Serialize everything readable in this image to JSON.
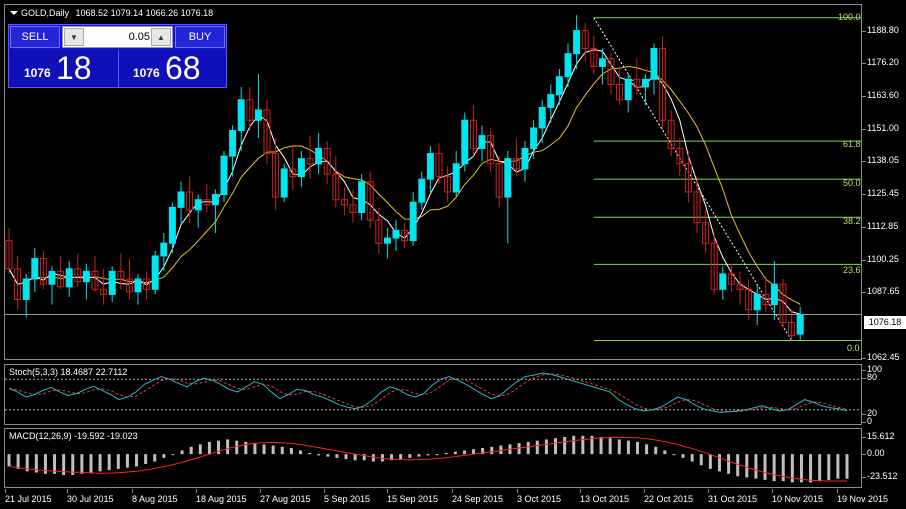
{
  "window": {
    "symbol_title": "GOLD,Daily",
    "ohlc_text": "1068.52 1079.14 1066.26 1076.18"
  },
  "trade_panel": {
    "sell_label": "SELL",
    "buy_label": "BUY",
    "lot_value": "0.05",
    "sell_price_prefix": "1076",
    "sell_price_big": "18",
    "buy_price_prefix": "1076",
    "buy_price_big": "68",
    "spin_down_glyph": "▼",
    "spin_up_glyph": "▲"
  },
  "price_scale": {
    "ticks": [
      "1188.80",
      "1176.20",
      "1163.60",
      "1151.00",
      "1138.05",
      "1125.45",
      "1112.85",
      "1100.25",
      "1087.65",
      "1062.45"
    ],
    "current_price": "1076.18"
  },
  "fibonacci": {
    "levels": [
      "100.0",
      "61.8",
      "50.0",
      "38.2",
      "23.6",
      "0.0"
    ]
  },
  "stochastic": {
    "title": "Stoch(5,3,3) 18.4687 22.7112",
    "ticks": [
      "100",
      "80",
      "20",
      "0"
    ]
  },
  "macd": {
    "title": "MACD(12,26,9) -19.592 -19.023",
    "ticks": [
      "15.612",
      "0.00",
      "-23.512"
    ]
  },
  "time_axis": {
    "labels": [
      "21 Jul 2015",
      "30 Jul 2015",
      "8 Aug 2015",
      "18 Aug 2015",
      "27 Aug 2015",
      "5 Sep 2015",
      "15 Sep 2015",
      "24 Sep 2015",
      "3 Oct 2015",
      "13 Oct 2015",
      "22 Oct 2015",
      "31 Oct 2015",
      "10 Nov 2015",
      "19 Nov 2015"
    ]
  },
  "colors": {
    "background": "#000000",
    "bull_candle": "#00e5ee",
    "bear_candle": "#cc1f1f",
    "fast_ma": "#ffffff",
    "slow_ma": "#e6c619",
    "fib_lines": "#7ed957",
    "stoch_main": "#29b6c9",
    "stoch_signal": "#e23b3b",
    "macd_hist": "#c0c0c0",
    "macd_signal": "#ff2020",
    "trade_panel": "#1414c8"
  },
  "chart_data": {
    "type": "candlestick",
    "symbol": "GOLD",
    "timeframe": "Daily",
    "y_range": [
      1058,
      1197
    ],
    "candles": [
      [
        1105,
        1110,
        1092,
        1094
      ],
      [
        1094,
        1099,
        1078,
        1082
      ],
      [
        1082,
        1092,
        1075,
        1090
      ],
      [
        1090,
        1102,
        1085,
        1098
      ],
      [
        1098,
        1101,
        1086,
        1088
      ],
      [
        1088,
        1095,
        1080,
        1093
      ],
      [
        1093,
        1099,
        1086,
        1087
      ],
      [
        1087,
        1097,
        1083,
        1094
      ],
      [
        1094,
        1100,
        1087,
        1089
      ],
      [
        1089,
        1096,
        1082,
        1093
      ],
      [
        1093,
        1099,
        1085,
        1086
      ],
      [
        1086,
        1094,
        1080,
        1084
      ],
      [
        1084,
        1095,
        1081,
        1093
      ],
      [
        1093,
        1100,
        1086,
        1090
      ],
      [
        1090,
        1098,
        1082,
        1085
      ],
      [
        1085,
        1092,
        1080,
        1090
      ],
      [
        1090,
        1093,
        1082,
        1086
      ],
      [
        1086,
        1101,
        1084,
        1099
      ],
      [
        1099,
        1108,
        1093,
        1104
      ],
      [
        1104,
        1120,
        1100,
        1118
      ],
      [
        1118,
        1128,
        1112,
        1124
      ],
      [
        1124,
        1130,
        1112,
        1117
      ],
      [
        1117,
        1123,
        1110,
        1121
      ],
      [
        1121,
        1127,
        1116,
        1119
      ],
      [
        1119,
        1125,
        1108,
        1123
      ],
      [
        1123,
        1140,
        1120,
        1138
      ],
      [
        1138,
        1150,
        1130,
        1148
      ],
      [
        1148,
        1165,
        1140,
        1160
      ],
      [
        1160,
        1165,
        1148,
        1152
      ],
      [
        1152,
        1170,
        1145,
        1156
      ],
      [
        1156,
        1160,
        1135,
        1139
      ],
      [
        1139,
        1145,
        1117,
        1122
      ],
      [
        1122,
        1135,
        1120,
        1133
      ],
      [
        1133,
        1142,
        1125,
        1130
      ],
      [
        1130,
        1140,
        1126,
        1137
      ],
      [
        1137,
        1146,
        1129,
        1135
      ],
      [
        1135,
        1147,
        1131,
        1141
      ],
      [
        1141,
        1144,
        1127,
        1131
      ],
      [
        1131,
        1138,
        1118,
        1121
      ],
      [
        1121,
        1126,
        1115,
        1119
      ],
      [
        1119,
        1125,
        1112,
        1116
      ],
      [
        1116,
        1131,
        1113,
        1128
      ],
      [
        1128,
        1132,
        1110,
        1113
      ],
      [
        1113,
        1118,
        1100,
        1104
      ],
      [
        1104,
        1110,
        1098,
        1106
      ],
      [
        1106,
        1113,
        1101,
        1109
      ],
      [
        1109,
        1112,
        1102,
        1105
      ],
      [
        1105,
        1124,
        1103,
        1120
      ],
      [
        1120,
        1132,
        1117,
        1129
      ],
      [
        1129,
        1142,
        1124,
        1139
      ],
      [
        1139,
        1143,
        1127,
        1130
      ],
      [
        1130,
        1134,
        1120,
        1124
      ],
      [
        1124,
        1140,
        1122,
        1135
      ],
      [
        1135,
        1155,
        1132,
        1152
      ],
      [
        1152,
        1158,
        1138,
        1141
      ],
      [
        1141,
        1150,
        1136,
        1146
      ],
      [
        1146,
        1149,
        1132,
        1135
      ],
      [
        1135,
        1138,
        1118,
        1122
      ],
      [
        1122,
        1140,
        1104,
        1137
      ],
      [
        1137,
        1145,
        1130,
        1133
      ],
      [
        1133,
        1144,
        1128,
        1141
      ],
      [
        1141,
        1152,
        1137,
        1149
      ],
      [
        1149,
        1160,
        1143,
        1157
      ],
      [
        1157,
        1166,
        1151,
        1162
      ],
      [
        1162,
        1172,
        1158,
        1169
      ],
      [
        1169,
        1182,
        1165,
        1178
      ],
      [
        1178,
        1193,
        1172,
        1187
      ],
      [
        1187,
        1190,
        1175,
        1180
      ],
      [
        1180,
        1185,
        1170,
        1173
      ],
      [
        1173,
        1180,
        1166,
        1176
      ],
      [
        1176,
        1178,
        1162,
        1166
      ],
      [
        1166,
        1172,
        1158,
        1160
      ],
      [
        1160,
        1170,
        1155,
        1168
      ],
      [
        1168,
        1176,
        1162,
        1165
      ],
      [
        1165,
        1170,
        1158,
        1168
      ],
      [
        1168,
        1182,
        1162,
        1180
      ],
      [
        1180,
        1185,
        1148,
        1152
      ],
      [
        1152,
        1156,
        1138,
        1141
      ],
      [
        1141,
        1145,
        1130,
        1135
      ],
      [
        1135,
        1140,
        1120,
        1124
      ],
      [
        1124,
        1130,
        1108,
        1112
      ],
      [
        1112,
        1117,
        1100,
        1104
      ],
      [
        1104,
        1108,
        1084,
        1086
      ],
      [
        1086,
        1095,
        1082,
        1092
      ],
      [
        1092,
        1096,
        1085,
        1088
      ],
      [
        1088,
        1093,
        1080,
        1086
      ],
      [
        1086,
        1090,
        1074,
        1078
      ],
      [
        1078,
        1088,
        1072,
        1084
      ],
      [
        1084,
        1091,
        1077,
        1080
      ],
      [
        1080,
        1097,
        1074,
        1088
      ],
      [
        1088,
        1090,
        1071,
        1073
      ],
      [
        1073,
        1078,
        1066,
        1068
      ],
      [
        1068.52,
        1079.14,
        1066.26,
        1076.18
      ]
    ],
    "stoch_k": [
      62,
      55,
      45,
      50,
      58,
      64,
      55,
      48,
      52,
      60,
      66,
      58,
      50,
      40,
      45,
      55,
      70,
      78,
      85,
      80,
      72,
      65,
      75,
      82,
      78,
      70,
      60,
      55,
      65,
      75,
      70,
      55,
      42,
      50,
      60,
      58,
      50,
      45,
      38,
      30,
      25,
      22,
      28,
      40,
      55,
      65,
      60,
      50,
      45,
      52,
      68,
      80,
      85,
      78,
      70,
      60,
      50,
      42,
      48,
      62,
      75,
      85,
      88,
      92,
      90,
      85,
      80,
      75,
      70,
      65,
      60,
      55,
      40,
      30,
      22,
      18,
      20,
      25,
      35,
      45,
      40,
      30,
      22,
      18,
      15,
      16,
      18,
      20,
      24,
      28,
      22,
      18,
      20,
      30,
      40,
      35,
      28,
      24,
      22,
      18
    ],
    "macd_hist": [
      -10,
      -12,
      -14,
      -15,
      -16,
      -16,
      -17,
      -17,
      -16,
      -15,
      -14,
      -13,
      -12,
      -11,
      -10,
      -8,
      -6,
      -3,
      0,
      3,
      6,
      8,
      10,
      11,
      12,
      11,
      10,
      9,
      8,
      7,
      6,
      5,
      3,
      1,
      -1,
      -2,
      -3,
      -4,
      -5,
      -5,
      -6,
      -6,
      -5,
      -4,
      -3,
      -2,
      -1,
      0,
      1,
      2,
      3,
      4,
      5,
      6,
      7,
      8,
      9,
      10,
      11,
      12,
      13,
      14,
      15,
      15,
      15,
      14,
      13,
      12,
      11,
      10,
      8,
      6,
      3,
      0,
      -3,
      -6,
      -9,
      -12,
      -14,
      -16,
      -18,
      -19,
      -20,
      -21,
      -22,
      -22,
      -23,
      -23,
      -23,
      -22,
      -21,
      -20,
      -20
    ],
    "x_labels": [
      "21 Jul 2015",
      "30 Jul 2015",
      "8 Aug 2015",
      "18 Aug 2015",
      "27 Aug 2015",
      "5 Sep 2015",
      "15 Sep 2015",
      "24 Sep 2015",
      "3 Oct 2015",
      "13 Oct 2015",
      "22 Oct 2015",
      "31 Oct 2015",
      "10 Nov 2015",
      "19 Nov 2015"
    ]
  }
}
